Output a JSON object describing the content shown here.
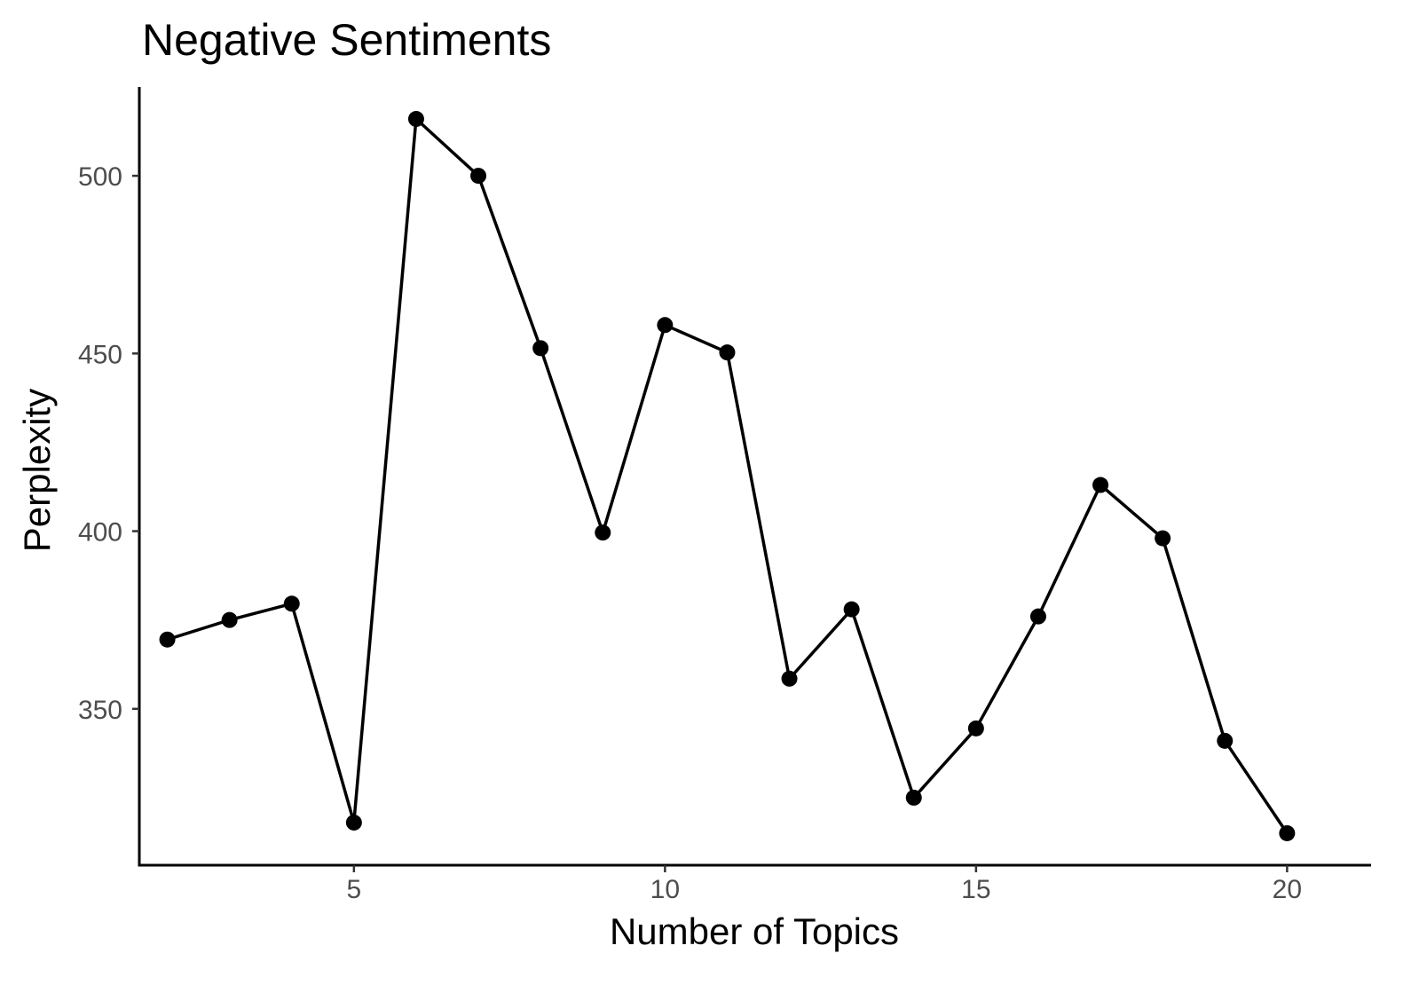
{
  "chart_data": {
    "type": "line",
    "title": "Negative Sentiments",
    "xlabel": "Number of Topics",
    "ylabel": "Perplexity",
    "xlim": [
      1.55,
      21.35
    ],
    "ylim": [
      306,
      525
    ],
    "xticks": [
      5,
      10,
      15,
      20
    ],
    "yticks": [
      350,
      400,
      450,
      500
    ],
    "grid": false,
    "legend": "none",
    "series": [
      {
        "x": [
          2,
          3,
          4,
          5,
          6,
          7,
          8,
          9,
          10,
          11,
          12,
          13,
          14,
          15,
          16,
          17,
          18,
          19,
          20
        ],
        "y": [
          369.5,
          375,
          379.6,
          318,
          516,
          500,
          451.5,
          399.6,
          458,
          450.3,
          358.5,
          378,
          325,
          344.5,
          376,
          413,
          398,
          341,
          315
        ],
        "color": "#000000",
        "marker": "circle"
      }
    ]
  }
}
